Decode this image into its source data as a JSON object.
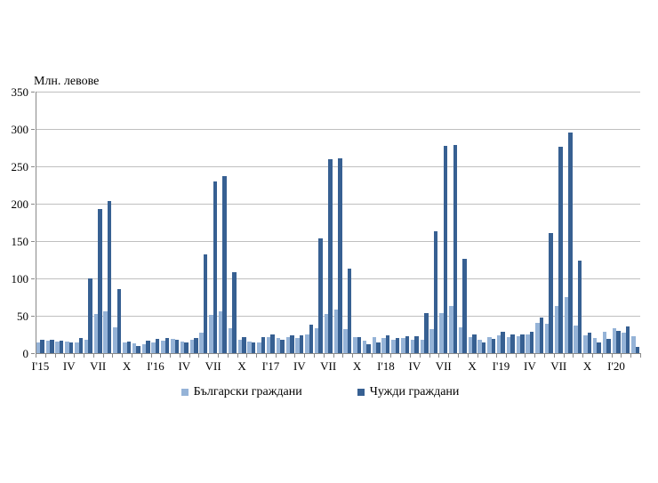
{
  "chart_data": {
    "type": "bar",
    "title": "Млн. левове",
    "ylabel": "Млн. левове",
    "xlabel": "",
    "ylim": [
      0,
      350
    ],
    "ytick_step": 50,
    "y_tick_labels": [
      "0",
      "50",
      "100",
      "150",
      "200",
      "250",
      "300",
      "350"
    ],
    "x_tick_labels": [
      "I'15",
      "IV",
      "VII",
      "X",
      "I'16",
      "IV",
      "VII",
      "X",
      "I'17",
      "IV",
      "VII",
      "X",
      "I'18",
      "IV",
      "VII",
      "X",
      "I'19",
      "IV",
      "VII",
      "X",
      "I'20"
    ],
    "x_tick_label_every_n_months": 3,
    "grid": true,
    "legend_position": "bottom",
    "categories": [
      "I'15",
      "II'15",
      "III'15",
      "IV'15",
      "V'15",
      "VI'15",
      "VII'15",
      "VIII'15",
      "IX'15",
      "X'15",
      "XI'15",
      "XII'15",
      "I'16",
      "II'16",
      "III'16",
      "IV'16",
      "V'16",
      "VI'16",
      "VII'16",
      "VIII'16",
      "IX'16",
      "X'16",
      "XI'16",
      "XII'16",
      "I'17",
      "II'17",
      "III'17",
      "IV'17",
      "V'17",
      "VI'17",
      "VII'17",
      "VIII'17",
      "IX'17",
      "X'17",
      "XI'17",
      "XII'17",
      "I'18",
      "II'18",
      "III'18",
      "IV'18",
      "V'18",
      "VI'18",
      "VII'18",
      "VIII'18",
      "IX'18",
      "X'18",
      "XI'18",
      "XII'18",
      "I'19",
      "II'19",
      "III'19",
      "IV'19",
      "V'19",
      "VI'19",
      "VII'19",
      "VIII'19",
      "IX'19",
      "X'19",
      "XI'19",
      "XII'19",
      "I'20",
      "II'20",
      "III'20"
    ],
    "series": [
      {
        "name": "Български граждани",
        "color": "#95b3d7",
        "values": [
          14,
          17,
          15,
          15,
          14,
          18,
          52,
          56,
          35,
          14,
          13,
          12,
          14,
          17,
          19,
          16,
          18,
          27,
          51,
          56,
          33,
          18,
          16,
          14,
          22,
          20,
          22,
          20,
          25,
          33,
          52,
          58,
          32,
          22,
          17,
          22,
          20,
          18,
          20,
          18,
          18,
          32,
          53,
          63,
          34,
          22,
          18,
          22,
          24,
          22,
          23,
          25,
          40,
          39,
          63,
          75,
          37,
          24,
          20,
          29,
          33,
          27,
          23
        ]
      },
      {
        "name": "Чужди граждани",
        "color": "#376092",
        "values": [
          18,
          18,
          17,
          14,
          20,
          100,
          193,
          204,
          86,
          16,
          10,
          17,
          19,
          20,
          18,
          14,
          20,
          132,
          230,
          237,
          108,
          21,
          14,
          22,
          25,
          18,
          24,
          24,
          38,
          154,
          260,
          261,
          113,
          21,
          12,
          14,
          24,
          20,
          23,
          23,
          53,
          163,
          277,
          278,
          126,
          25,
          14,
          19,
          28,
          25,
          25,
          29,
          48,
          161,
          276,
          295,
          124,
          27,
          14,
          19,
          30,
          36,
          8
        ]
      }
    ],
    "gridline_color": "#bfbfbf",
    "axis_color": "#898989"
  }
}
